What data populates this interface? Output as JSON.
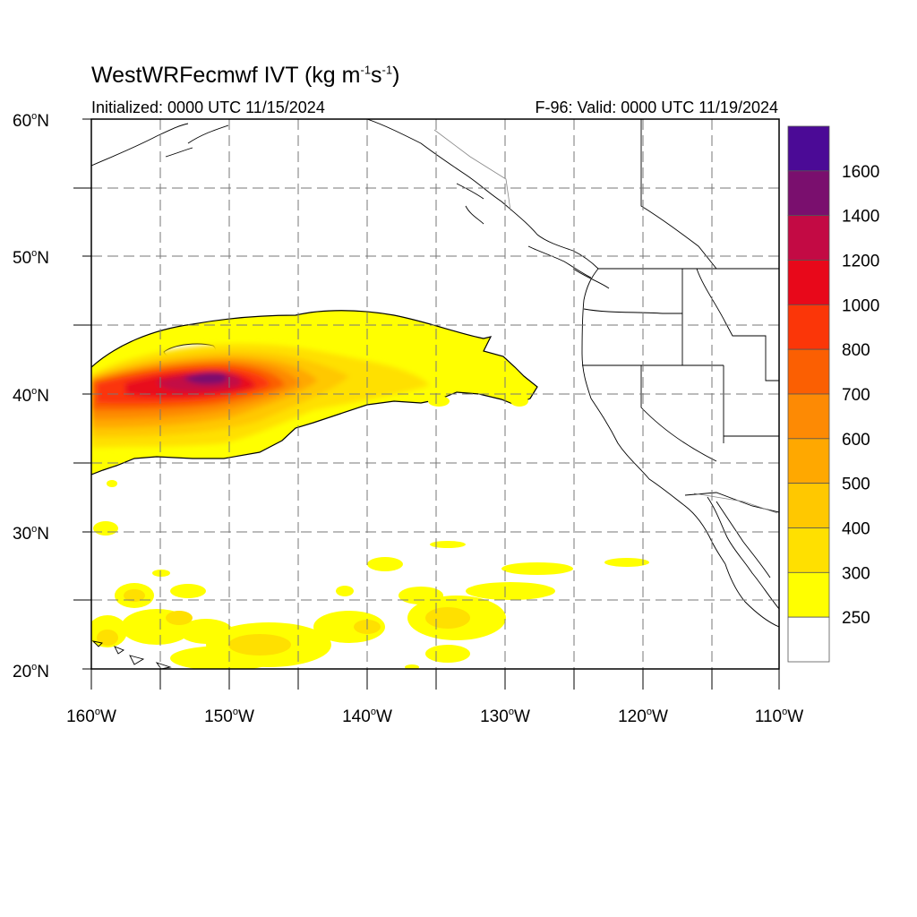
{
  "title": {
    "main": "WestWRFecmwf IVT (kg m",
    "sup1": "-1",
    "mid": "s",
    "sup2": "-1",
    "end": ")"
  },
  "init_label": "Initialized: 0000 UTC 11/15/2024",
  "valid_label": "F-96: Valid: 0000 UTC 11/19/2024",
  "map": {
    "lon_range": [
      -160,
      -110
    ],
    "lat_range": [
      20,
      60
    ],
    "lat_ticks": [
      "60",
      "50",
      "40",
      "30",
      "20"
    ],
    "lon_ticks": [
      "160",
      "150",
      "140",
      "130",
      "120",
      "110"
    ],
    "lat_suffix": "N",
    "lon_suffix": "W",
    "gridlines": "dashed"
  },
  "colorbar": {
    "labels": [
      "1600",
      "1400",
      "1200",
      "1000",
      "800",
      "700",
      "600",
      "500",
      "400",
      "300",
      "250"
    ],
    "colors": [
      "#4b0a96",
      "#7a0f6e",
      "#c30a44",
      "#e8081a",
      "#fb3608",
      "#fb5f02",
      "#fd8a04",
      "#ffa800",
      "#ffc800",
      "#ffe000",
      "#ffff00",
      "#ffffff"
    ]
  }
}
